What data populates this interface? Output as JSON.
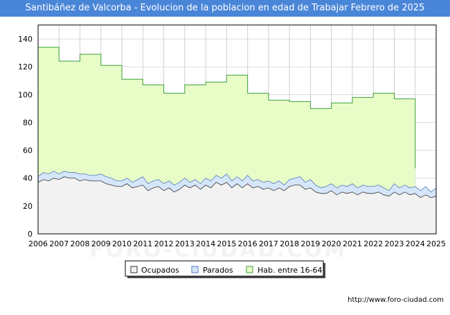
{
  "chart_data": {
    "type": "area",
    "title": "Santibáñez de Valcorba - Evolucion de la poblacion en edad de Trabajar Febrero de 2025",
    "xlabel": "",
    "ylabel": "",
    "ylim": [
      0,
      150
    ],
    "xlim": [
      2006,
      2025
    ],
    "y_ticks": [
      "0",
      "20",
      "40",
      "60",
      "80",
      "100",
      "120",
      "140"
    ],
    "x_ticks": [
      "2006",
      "2007",
      "2008",
      "2009",
      "2010",
      "2011",
      "2012",
      "2013",
      "2014",
      "2015",
      "2016",
      "2017",
      "2018",
      "2019",
      "2020",
      "2021",
      "2022",
      "2023",
      "2024",
      "2025"
    ],
    "grid": true,
    "legend": {
      "position": "bottom-center",
      "entries": [
        "Ocupados",
        "Parados",
        "Hab. entre 16-64"
      ]
    },
    "colors": {
      "ocupados_fill": "#f2f2f2",
      "parados_fill": "#d6e6fa",
      "hab_fill": "#e8fcc8",
      "hab_line": "#3b9e3b",
      "parados_line": "#4d79b8",
      "ocupados_line": "#333333"
    },
    "series": [
      {
        "name": "Hab. entre 16-64",
        "x": [
          2006,
          2007,
          2008,
          2009,
          2010,
          2011,
          2012,
          2013,
          2014,
          2015,
          2016,
          2017,
          2018,
          2019,
          2020,
          2021,
          2022,
          2023,
          2024
        ],
        "values": [
          134,
          124,
          129,
          121,
          111,
          107,
          101,
          107,
          109,
          114,
          101,
          96,
          95,
          90,
          94,
          98,
          101,
          97,
          47
        ]
      },
      {
        "name": "Parados",
        "x": [
          2006.0,
          2006.25,
          2006.5,
          2006.75,
          2007.0,
          2007.25,
          2007.5,
          2007.75,
          2008.0,
          2008.25,
          2008.5,
          2008.75,
          2009.0,
          2009.25,
          2009.5,
          2009.75,
          2010.0,
          2010.25,
          2010.5,
          2010.75,
          2011.0,
          2011.25,
          2011.5,
          2011.75,
          2012.0,
          2012.25,
          2012.5,
          2012.75,
          2013.0,
          2013.25,
          2013.5,
          2013.75,
          2014.0,
          2014.25,
          2014.5,
          2014.75,
          2015.0,
          2015.25,
          2015.5,
          2015.75,
          2016.0,
          2016.25,
          2016.5,
          2016.75,
          2017.0,
          2017.25,
          2017.5,
          2017.75,
          2018.0,
          2018.25,
          2018.5,
          2018.75,
          2019.0,
          2019.25,
          2019.5,
          2019.75,
          2020.0,
          2020.25,
          2020.5,
          2020.75,
          2021.0,
          2021.25,
          2021.5,
          2021.75,
          2022.0,
          2022.25,
          2022.5,
          2022.75,
          2023.0,
          2023.25,
          2023.5,
          2023.75,
          2024.0,
          2024.25,
          2024.5,
          2024.75,
          2025.0
        ],
        "values": [
          41,
          44,
          43,
          45,
          43,
          45,
          44,
          44,
          43,
          43,
          42,
          42,
          43,
          41,
          40,
          38,
          38,
          40,
          37,
          39,
          41,
          36,
          38,
          39,
          36,
          38,
          35,
          37,
          40,
          37,
          39,
          36,
          40,
          38,
          42,
          40,
          43,
          38,
          41,
          38,
          42,
          38,
          39,
          37,
          38,
          36,
          38,
          35,
          39,
          40,
          41,
          37,
          39,
          35,
          33,
          34,
          36,
          33,
          35,
          34,
          36,
          33,
          35,
          34,
          34,
          35,
          33,
          31,
          36,
          33,
          35,
          33,
          34,
          31,
          34,
          30,
          33
        ]
      },
      {
        "name": "Ocupados",
        "x": [
          2006.0,
          2006.25,
          2006.5,
          2006.75,
          2007.0,
          2007.25,
          2007.5,
          2007.75,
          2008.0,
          2008.25,
          2008.5,
          2008.75,
          2009.0,
          2009.25,
          2009.5,
          2009.75,
          2010.0,
          2010.25,
          2010.5,
          2010.75,
          2011.0,
          2011.25,
          2011.5,
          2011.75,
          2012.0,
          2012.25,
          2012.5,
          2012.75,
          2013.0,
          2013.25,
          2013.5,
          2013.75,
          2014.0,
          2014.25,
          2014.5,
          2014.75,
          2015.0,
          2015.25,
          2015.5,
          2015.75,
          2016.0,
          2016.25,
          2016.5,
          2016.75,
          2017.0,
          2017.25,
          2017.5,
          2017.75,
          2018.0,
          2018.25,
          2018.5,
          2018.75,
          2019.0,
          2019.25,
          2019.5,
          2019.75,
          2020.0,
          2020.25,
          2020.5,
          2020.75,
          2021.0,
          2021.25,
          2021.5,
          2021.75,
          2022.0,
          2022.25,
          2022.5,
          2022.75,
          2023.0,
          2023.25,
          2023.5,
          2023.75,
          2024.0,
          2024.25,
          2024.5,
          2024.75,
          2025.0
        ],
        "values": [
          37,
          39,
          38,
          40,
          39,
          41,
          40,
          40,
          38,
          39,
          38,
          38,
          38,
          36,
          35,
          34,
          34,
          36,
          33,
          34,
          35,
          31,
          33,
          34,
          31,
          33,
          30,
          32,
          35,
          33,
          35,
          32,
          35,
          33,
          37,
          35,
          37,
          33,
          36,
          33,
          36,
          33,
          34,
          32,
          33,
          31,
          33,
          31,
          34,
          35,
          35,
          32,
          33,
          30,
          29,
          29,
          31,
          28,
          30,
          29,
          30,
          28,
          30,
          29,
          29,
          30,
          28,
          27,
          30,
          28,
          30,
          28,
          29,
          26,
          28,
          26,
          27
        ]
      }
    ],
    "footer": "http://www.foro-ciudad.com",
    "watermark": "FORO-CIUDAD.COM"
  }
}
